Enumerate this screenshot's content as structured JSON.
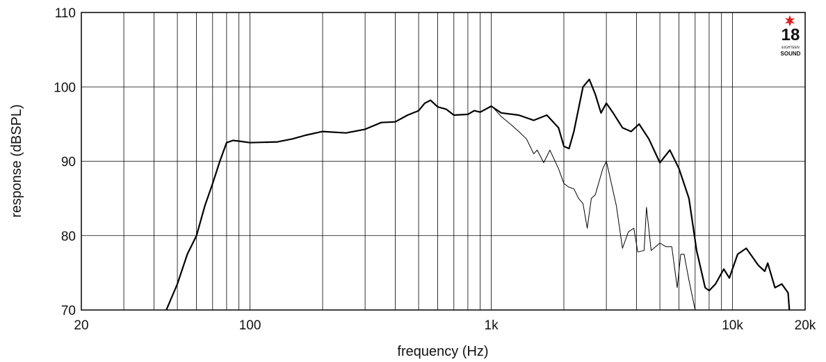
{
  "chart_data": {
    "type": "line",
    "xlabel": "frequency (Hz)",
    "ylabel": "response (dBSPL)",
    "xscale": "log",
    "xlim": [
      20,
      20000
    ],
    "ylim": [
      70,
      110
    ],
    "xticks": [
      20,
      100,
      {
        "value": 1000,
        "label": "1k"
      },
      {
        "value": 10000,
        "label": "10k"
      },
      {
        "value": 20000,
        "label": "20k"
      }
    ],
    "xminor": [
      30,
      40,
      50,
      60,
      70,
      80,
      90,
      200,
      300,
      400,
      500,
      600,
      700,
      800,
      900,
      2000,
      3000,
      4000,
      5000,
      6000,
      7000,
      8000,
      9000
    ],
    "yticks": [
      70,
      80,
      90,
      100,
      110
    ],
    "grid": true,
    "logo": {
      "number": "18",
      "line1": "EIGHTEEN",
      "line2": "SOUND"
    },
    "series": [
      {
        "color": "#000000",
        "width": 2.2,
        "x": [
          45,
          50,
          55,
          60,
          65,
          70,
          75,
          80,
          85,
          90,
          100,
          130,
          150,
          170,
          200,
          250,
          300,
          350,
          400,
          450,
          500,
          530,
          560,
          600,
          650,
          700,
          800,
          850,
          900,
          1000,
          1100,
          1300,
          1500,
          1700,
          1900,
          2000,
          2100,
          2200,
          2400,
          2550,
          2700,
          2850,
          3000,
          3200,
          3500,
          3800,
          4100,
          4500,
          5000,
          5500,
          6000,
          6600,
          7100,
          7700,
          8000,
          8500,
          9200,
          9700,
          10500,
          11400,
          12800,
          13600,
          14000,
          15000,
          16000,
          17000,
          17200
        ],
        "values": [
          70,
          73.5,
          77.5,
          80,
          84,
          87,
          90,
          92.5,
          92.8,
          92.7,
          92.5,
          92.6,
          93,
          93.5,
          94,
          93.8,
          94.3,
          95.2,
          95.3,
          96.2,
          96.8,
          97.8,
          98.2,
          97.3,
          97,
          96.2,
          96.3,
          96.8,
          96.6,
          97.4,
          96.5,
          96.2,
          95.5,
          96.2,
          94.5,
          92,
          91.7,
          94,
          100,
          101,
          99,
          96.5,
          97.8,
          96.5,
          94.5,
          94,
          95,
          93,
          89.8,
          91.5,
          89,
          85,
          78,
          73,
          72.6,
          73.5,
          75.5,
          74.3,
          77.5,
          78.3,
          76,
          75.2,
          76.3,
          73,
          73.5,
          72.3,
          70
        ]
      },
      {
        "color": "#000000",
        "width": 1,
        "x": [
          1000,
          1100,
          1200,
          1300,
          1400,
          1500,
          1550,
          1650,
          1750,
          1900,
          2000,
          2100,
          2200,
          2300,
          2400,
          2500,
          2600,
          2700,
          2900,
          3000,
          3100,
          3300,
          3500,
          3700,
          3900,
          4050,
          4300,
          4400,
          4600,
          4800,
          5000,
          5300,
          5600,
          5900,
          6100,
          6300,
          6600,
          7000
        ],
        "values": [
          97.5,
          96,
          95,
          94,
          93,
          91,
          91.5,
          89.8,
          91.5,
          89,
          87,
          86.5,
          86.3,
          85,
          84.3,
          81,
          85,
          85.5,
          89,
          90,
          88,
          84,
          78.3,
          80.5,
          81,
          77.8,
          78,
          83.8,
          78,
          78.5,
          79,
          78.5,
          78.5,
          73,
          77.5,
          77.5,
          74,
          70
        ]
      }
    ]
  }
}
